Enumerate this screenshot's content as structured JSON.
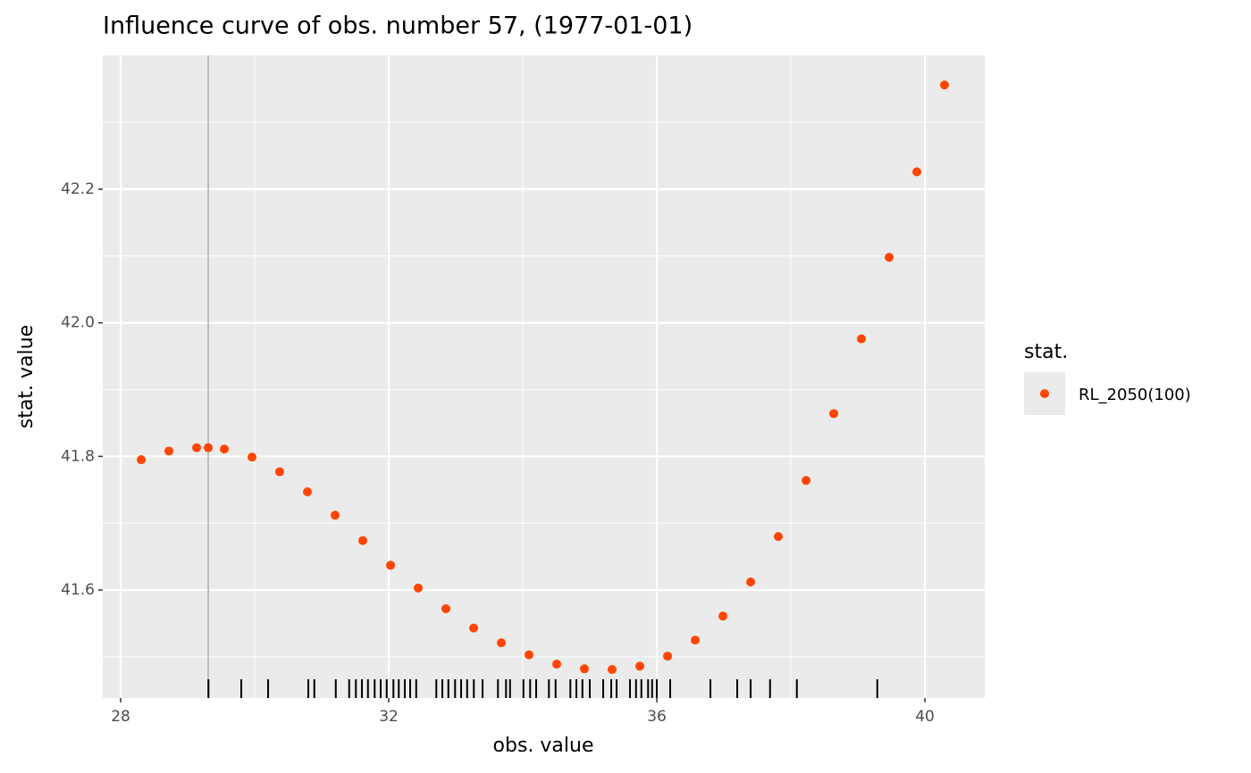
{
  "chart_data": {
    "type": "scatter",
    "title": "Influence curve of obs. number 57, (1977-01-01)",
    "xlabel": "obs. value",
    "ylabel": "stat. value",
    "xlim": [
      27.733,
      40.893
    ],
    "ylim": [
      41.4383,
      42.4004
    ],
    "xticks": [
      28,
      32,
      36,
      40
    ],
    "yticks": [
      41.6,
      41.8,
      {
        "value": 42,
        "label": "42.0"
      },
      42.2
    ],
    "xminorticks": [
      30,
      34,
      38
    ],
    "yminorticks": [
      41.5,
      41.7,
      41.9,
      42.1,
      42.3
    ],
    "grid": true,
    "legend_title": "stat.",
    "legend_position": "right",
    "series": [
      {
        "name": "RL_2050(100)",
        "color": "#ff4500",
        "x": [
          28.307,
          28.72,
          29.133,
          29.307,
          29.547,
          29.96,
          30.373,
          30.787,
          31.2,
          31.613,
          32.027,
          32.44,
          32.853,
          33.267,
          33.68,
          34.093,
          34.507,
          34.92,
          35.333,
          35.747,
          36.16,
          36.573,
          36.987,
          37.4,
          37.813,
          38.227,
          38.64,
          39.053,
          39.467,
          39.88,
          40.293
        ],
        "values": [
          41.795,
          41.808,
          41.813,
          41.813,
          41.811,
          41.799,
          41.777,
          41.747,
          41.712,
          41.674,
          41.637,
          41.603,
          41.572,
          41.543,
          41.521,
          41.503,
          41.489,
          41.482,
          41.481,
          41.486,
          41.501,
          41.525,
          41.561,
          41.612,
          41.68,
          41.764,
          41.864,
          41.976,
          42.098,
          42.226,
          42.356
        ]
      }
    ],
    "vline": 29.307,
    "rug": [
      29.31,
      29.8,
      30.2,
      30.8,
      30.89,
      31.21,
      31.41,
      31.51,
      31.6,
      31.69,
      31.79,
      31.88,
      31.97,
      32.07,
      32.15,
      32.24,
      32.32,
      32.41,
      32.71,
      32.8,
      32.89,
      32.99,
      33.08,
      33.17,
      33.27,
      33.4,
      33.63,
      33.75,
      33.81,
      34.01,
      34.11,
      34.2,
      34.39,
      34.49,
      34.71,
      34.8,
      34.89,
      35.0,
      35.2,
      35.32,
      35.4,
      35.6,
      35.69,
      35.77,
      35.87,
      35.93,
      36.0,
      36.2,
      36.8,
      37.2,
      37.4,
      37.69,
      38.09,
      39.29
    ]
  }
}
